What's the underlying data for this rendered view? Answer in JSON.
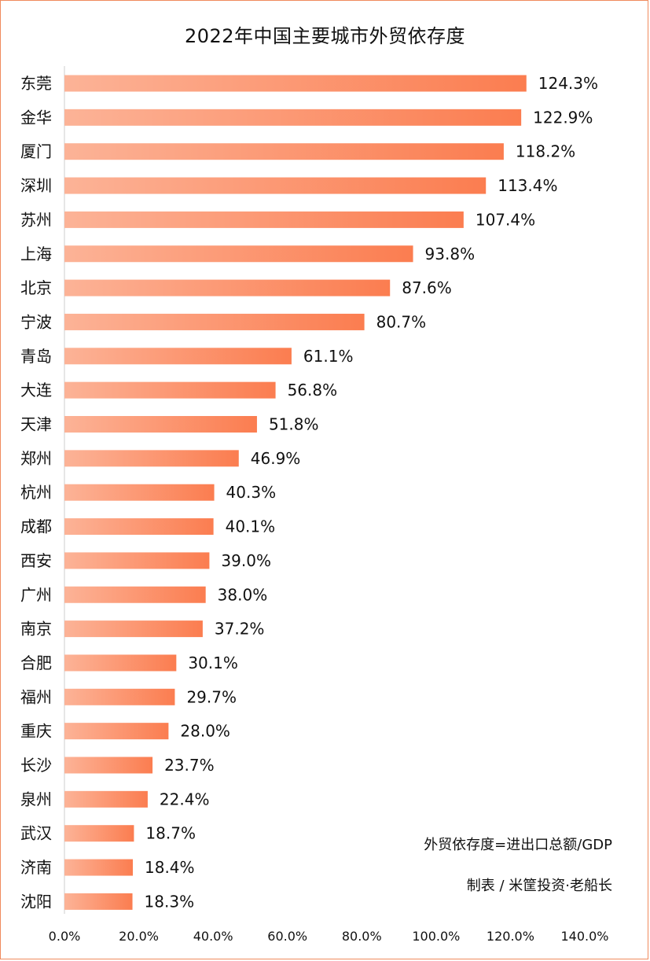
{
  "chart_data": {
    "type": "bar",
    "orientation": "horizontal",
    "title": "2022年中国主要城市外贸依存度",
    "categories": [
      "东莞",
      "金华",
      "厦门",
      "深圳",
      "苏州",
      "上海",
      "北京",
      "宁波",
      "青岛",
      "大连",
      "天津",
      "郑州",
      "杭州",
      "成都",
      "西安",
      "广州",
      "南京",
      "合肥",
      "福州",
      "重庆",
      "长沙",
      "泉州",
      "武汉",
      "济南",
      "沈阳"
    ],
    "values": [
      124.3,
      122.9,
      118.2,
      113.4,
      107.4,
      93.8,
      87.6,
      80.7,
      61.1,
      56.8,
      51.8,
      46.9,
      40.3,
      40.1,
      39.0,
      38.0,
      37.2,
      30.1,
      29.7,
      28.0,
      23.7,
      22.4,
      18.7,
      18.4,
      18.3
    ],
    "value_labels": [
      "124.3%",
      "122.9%",
      "118.2%",
      "113.4%",
      "107.4%",
      "93.8%",
      "87.6%",
      "80.7%",
      "61.1%",
      "56.8%",
      "51.8%",
      "46.9%",
      "40.3%",
      "40.1%",
      "39.0%",
      "38.0%",
      "37.2%",
      "30.1%",
      "29.7%",
      "28.0%",
      "23.7%",
      "22.4%",
      "18.7%",
      "18.4%",
      "18.3%"
    ],
    "x_ticks": [
      "0.0%",
      "20.0%",
      "40.0%",
      "60.0%",
      "80.0%",
      "100.0%",
      "120.0%",
      "140.0%"
    ],
    "xlim": [
      0,
      140
    ],
    "xlabel": "",
    "ylabel": "",
    "grid": false,
    "colors": {
      "bar_start": "#fcb397",
      "bar_end": "#fb7d50",
      "axis": "#cccccc",
      "border": "#f08a5d"
    }
  },
  "annotations": {
    "formula": "外贸依存度=进出口总额/GDP",
    "credit": "制表 / 米筐投资·老船长"
  }
}
